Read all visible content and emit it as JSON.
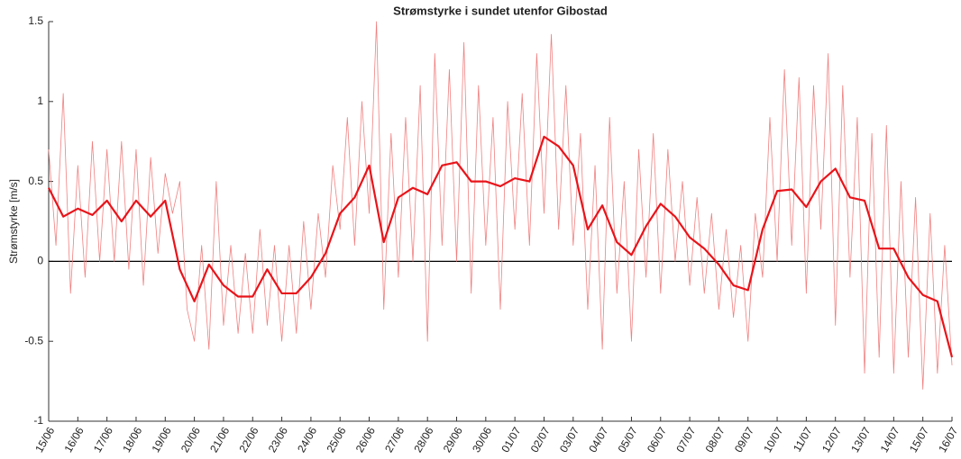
{
  "chart_data": {
    "type": "line",
    "title": "Strømstyrke i sundet utenfor Gibostad",
    "y_label": "Strømstyrke [m/s]",
    "ylim": [
      -1,
      1.5
    ],
    "yticks": [
      -1,
      -0.5,
      0,
      0.5,
      1,
      1.5
    ],
    "xlim": [
      0,
      31
    ],
    "xticks": [
      {
        "value": 0,
        "label": "15/06"
      },
      {
        "value": 1,
        "label": "16/06"
      },
      {
        "value": 2,
        "label": "17/06"
      },
      {
        "value": 3,
        "label": "18/06"
      },
      {
        "value": 4,
        "label": "19/06"
      },
      {
        "value": 5,
        "label": "20/06"
      },
      {
        "value": 6,
        "label": "21/06"
      },
      {
        "value": 7,
        "label": "22/06"
      },
      {
        "value": 8,
        "label": "23/06"
      },
      {
        "value": 9,
        "label": "24/06"
      },
      {
        "value": 10,
        "label": "25/06"
      },
      {
        "value": 11,
        "label": "26/06"
      },
      {
        "value": 12,
        "label": "27/06"
      },
      {
        "value": 13,
        "label": "28/06"
      },
      {
        "value": 14,
        "label": "29/06"
      },
      {
        "value": 15,
        "label": "30/06"
      },
      {
        "value": 16,
        "label": "01/07"
      },
      {
        "value": 17,
        "label": "02/07"
      },
      {
        "value": 18,
        "label": "03/07"
      },
      {
        "value": 19,
        "label": "04/07"
      },
      {
        "value": 20,
        "label": "05/07"
      },
      {
        "value": 21,
        "label": "06/07"
      },
      {
        "value": 22,
        "label": "07/07"
      },
      {
        "value": 23,
        "label": "08/07"
      },
      {
        "value": 24,
        "label": "09/07"
      },
      {
        "value": 25,
        "label": "10/07"
      },
      {
        "value": 26,
        "label": "11/07"
      },
      {
        "value": 27,
        "label": "12/07"
      },
      {
        "value": 28,
        "label": "13/07"
      },
      {
        "value": 29,
        "label": "14/07"
      },
      {
        "value": 30,
        "label": "15/07"
      },
      {
        "value": 31,
        "label": "16/07"
      }
    ],
    "zero_line_color": "#000000",
    "series": [
      {
        "color": "#f08080",
        "width": 0.8,
        "x": [
          0,
          0.25,
          0.5,
          0.75,
          1,
          1.25,
          1.5,
          1.75,
          2,
          2.25,
          2.5,
          2.75,
          3,
          3.25,
          3.5,
          3.75,
          4,
          4.25,
          4.5,
          4.75,
          5,
          5.25,
          5.5,
          5.75,
          6,
          6.25,
          6.5,
          6.75,
          7,
          7.25,
          7.5,
          7.75,
          8,
          8.25,
          8.5,
          8.75,
          9,
          9.25,
          9.5,
          9.75,
          10,
          10.25,
          10.5,
          10.75,
          11,
          11.25,
          11.5,
          11.75,
          12,
          12.25,
          12.5,
          12.75,
          13,
          13.25,
          13.5,
          13.75,
          14,
          14.25,
          14.5,
          14.75,
          15,
          15.25,
          15.5,
          15.75,
          16,
          16.25,
          16.5,
          16.75,
          17,
          17.25,
          17.5,
          17.75,
          18,
          18.25,
          18.5,
          18.75,
          19,
          19.25,
          19.5,
          19.75,
          20,
          20.25,
          20.5,
          20.75,
          21,
          21.25,
          21.5,
          21.75,
          22,
          22.25,
          22.5,
          22.75,
          23,
          23.25,
          23.5,
          23.75,
          24,
          24.25,
          24.5,
          24.75,
          25,
          25.25,
          25.5,
          25.75,
          26,
          26.25,
          26.5,
          26.75,
          27,
          27.25,
          27.5,
          27.75,
          28,
          28.25,
          28.5,
          28.75,
          29,
          29.25,
          29.5,
          29.75,
          30,
          30.25,
          30.5,
          30.75,
          31
        ],
        "values": [
          0.7,
          0.1,
          1.05,
          -0.2,
          0.6,
          -0.1,
          0.75,
          0.0,
          0.7,
          0.0,
          0.75,
          -0.05,
          0.7,
          -0.15,
          0.65,
          0.05,
          0.55,
          0.3,
          0.5,
          -0.3,
          -0.5,
          0.1,
          -0.55,
          0.5,
          -0.4,
          0.1,
          -0.45,
          0.05,
          -0.45,
          0.2,
          -0.4,
          0.1,
          -0.5,
          0.1,
          -0.45,
          0.25,
          -0.3,
          0.3,
          -0.1,
          0.6,
          0.2,
          0.9,
          0.1,
          1.0,
          0.3,
          1.5,
          -0.3,
          0.8,
          -0.1,
          0.9,
          0.0,
          1.1,
          -0.5,
          1.3,
          0.1,
          1.2,
          0.0,
          1.37,
          -0.2,
          1.1,
          0.1,
          0.9,
          -0.3,
          1.0,
          0.2,
          1.05,
          0.1,
          1.3,
          0.3,
          1.42,
          0.2,
          1.1,
          0.1,
          0.8,
          -0.3,
          0.6,
          -0.55,
          0.9,
          -0.2,
          0.5,
          -0.5,
          0.7,
          -0.1,
          0.8,
          -0.2,
          0.7,
          0.0,
          0.5,
          -0.15,
          0.4,
          -0.2,
          0.3,
          -0.3,
          0.2,
          -0.35,
          0.1,
          -0.5,
          0.3,
          -0.1,
          0.9,
          0.0,
          1.2,
          0.1,
          1.15,
          -0.2,
          1.1,
          0.2,
          1.3,
          -0.4,
          1.1,
          -0.1,
          0.9,
          -0.7,
          0.8,
          -0.6,
          0.85,
          -0.7,
          0.5,
          -0.6,
          0.4,
          -0.8,
          0.3,
          -0.7,
          0.1,
          -0.65
        ]
      },
      {
        "color": "#e8141a",
        "width": 2.2,
        "x": [
          0,
          0.5,
          1,
          1.5,
          2,
          2.5,
          3,
          3.5,
          4,
          4.5,
          5,
          5.5,
          6,
          6.5,
          7,
          7.5,
          8,
          8.5,
          9,
          9.5,
          10,
          10.5,
          11,
          11.5,
          12,
          12.5,
          13,
          13.5,
          14,
          14.5,
          15,
          15.5,
          16,
          16.5,
          17,
          17.5,
          18,
          18.5,
          19,
          19.5,
          20,
          20.5,
          21,
          21.5,
          22,
          22.5,
          23,
          23.5,
          24,
          24.5,
          25,
          25.5,
          26,
          26.5,
          27,
          27.5,
          28,
          28.5,
          29,
          29.5,
          30,
          30.5,
          31
        ],
        "values": [
          0.46,
          0.28,
          0.33,
          0.29,
          0.38,
          0.25,
          0.38,
          0.28,
          0.38,
          -0.05,
          -0.25,
          -0.02,
          -0.15,
          -0.22,
          -0.22,
          -0.05,
          -0.2,
          -0.2,
          -0.1,
          0.05,
          0.3,
          0.4,
          0.6,
          0.12,
          0.4,
          0.46,
          0.42,
          0.6,
          0.62,
          0.5,
          0.5,
          0.47,
          0.52,
          0.5,
          0.78,
          0.72,
          0.6,
          0.2,
          0.35,
          0.12,
          0.04,
          0.22,
          0.36,
          0.28,
          0.15,
          0.08,
          -0.02,
          -0.15,
          -0.18,
          0.2,
          0.44,
          0.45,
          0.34,
          0.5,
          0.58,
          0.4,
          0.38,
          0.08,
          0.08,
          -0.1,
          -0.21,
          -0.25,
          -0.6
        ]
      }
    ]
  }
}
